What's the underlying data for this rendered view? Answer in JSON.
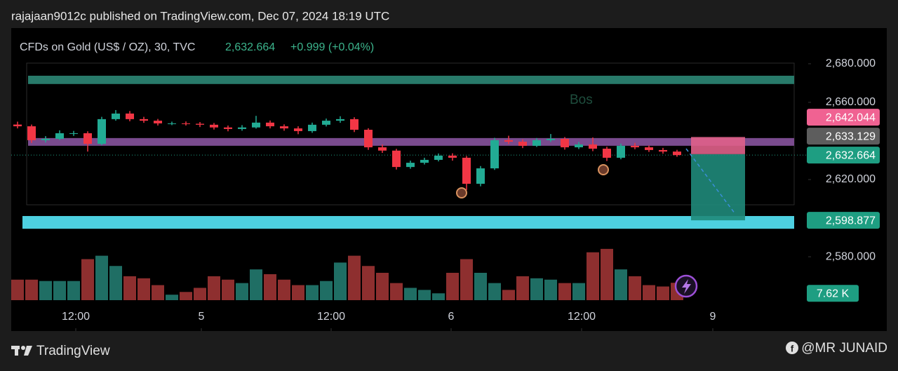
{
  "header": {
    "publisher": "rajajaan9012c published on TradingView.com, Dec 07, 2024 18:19 UTC"
  },
  "footer": {
    "brand": "TradingView",
    "credit": "@MR JUNAID"
  },
  "chart_data": {
    "type": "candlestick",
    "title": "CFDs on Gold (US$ / OZ), 30, TVC",
    "last_price": {
      "value": 2632.664,
      "label": "2,632.664"
    },
    "change": "+0.999 (+0.04%)",
    "annotation": "Bos",
    "up_color": "#22ab94",
    "down_color": "#f23645",
    "volume_up_color": "#1f6e64",
    "volume_down_color": "#8e2f2f",
    "x": [
      0,
      1,
      2,
      3,
      4,
      5,
      6,
      7,
      8,
      9,
      10,
      11,
      12,
      13,
      14,
      15,
      16,
      17,
      18,
      19,
      20,
      21,
      22,
      23,
      24,
      25,
      26,
      27,
      28,
      29,
      30,
      31,
      32,
      33,
      34,
      35,
      36,
      37,
      38,
      39,
      40,
      41,
      42,
      43,
      44,
      45,
      46,
      47
    ],
    "open": [
      2648.5,
      2647.6,
      2640.4,
      2641.1,
      2644.0,
      2644.0,
      2638.5,
      2651.3,
      2654.2,
      2651.3,
      2650.5,
      2649.1,
      2649.1,
      2648.9,
      2648.4,
      2647.0,
      2646.2,
      2647.0,
      2649.5,
      2647.6,
      2646.5,
      2645.1,
      2648.4,
      2650.5,
      2651.3,
      2645.8,
      2636.7,
      2635.0,
      2626.5,
      2628.7,
      2630.2,
      2632.4,
      2631.3,
      2617.8,
      2625.8,
      2640.4,
      2639.6,
      2637.5,
      2640.4,
      2641.1,
      2636.7,
      2638.2,
      2636.0,
      2631.3,
      2637.5,
      2636.7,
      2635.3,
      2634.5
    ],
    "high": [
      2650.0,
      2648.5,
      2642.5,
      2645.5,
      2645.2,
      2645.0,
      2652.5,
      2656.0,
      2655.5,
      2652.5,
      2651.4,
      2650.0,
      2650.1,
      2649.8,
      2649.3,
      2648.0,
      2648.2,
      2653.0,
      2650.6,
      2648.6,
      2647.6,
      2649.5,
      2651.6,
      2652.8,
      2652.3,
      2646.6,
      2638.2,
      2635.9,
      2629.8,
      2631.3,
      2633.5,
      2633.6,
      2632.2,
      2627.0,
      2641.6,
      2642.7,
      2640.8,
      2641.5,
      2643.6,
      2642.0,
      2639.5,
      2641.8,
      2637.0,
      2638.6,
      2639.0,
      2637.6,
      2636.4,
      2635.4
    ],
    "low": [
      2646.5,
      2639.0,
      2639.2,
      2640.5,
      2642.6,
      2634.5,
      2637.8,
      2650.5,
      2650.2,
      2649.4,
      2648.0,
      2648.2,
      2648.0,
      2647.2,
      2645.9,
      2645.0,
      2645.3,
      2646.4,
      2646.5,
      2645.3,
      2643.5,
      2644.2,
      2647.5,
      2649.4,
      2644.6,
      2635.4,
      2633.8,
      2625.2,
      2625.6,
      2627.8,
      2629.4,
      2629.8,
      2614.5,
      2616.5,
      2625.0,
      2638.4,
      2636.3,
      2636.9,
      2639.5,
      2635.5,
      2635.8,
      2634.7,
      2629.6,
      2630.5,
      2635.7,
      2634.3,
      2633.4,
      2631.8
    ],
    "close": [
      2647.6,
      2640.4,
      2641.1,
      2644.0,
      2644.0,
      2638.5,
      2651.3,
      2654.2,
      2651.3,
      2650.5,
      2649.1,
      2649.1,
      2648.9,
      2648.4,
      2647.0,
      2646.2,
      2647.0,
      2649.5,
      2647.6,
      2646.5,
      2645.1,
      2648.4,
      2650.5,
      2651.3,
      2645.8,
      2636.7,
      2635.0,
      2626.5,
      2628.7,
      2630.2,
      2632.4,
      2631.3,
      2617.8,
      2625.8,
      2640.4,
      2639.6,
      2637.5,
      2640.4,
      2641.1,
      2636.7,
      2638.2,
      2636.0,
      2631.3,
      2637.5,
      2636.7,
      2635.3,
      2634.5,
      2632.664
    ],
    "volume": [
      9000,
      9000,
      8400,
      8400,
      8400,
      18000,
      19500,
      15000,
      10500,
      9600,
      6600,
      2400,
      3600,
      5400,
      10500,
      9000,
      7500,
      13500,
      11400,
      9000,
      6600,
      6600,
      8400,
      16500,
      19500,
      15000,
      12000,
      7500,
      5400,
      4500,
      3000,
      12000,
      18000,
      12000,
      7500,
      4500,
      10500,
      9600,
      9000,
      7500,
      7500,
      21000,
      22500,
      13500,
      10500,
      6600,
      6000,
      7620
    ],
    "volume_last": {
      "value": 7620,
      "label": "7.62 K"
    },
    "volume_ylim": [
      0,
      40000
    ],
    "xlim": [
      -0.45,
      56.35
    ],
    "ylim": [
      2557.5,
      2698.5
    ],
    "yticks": [
      {
        "value": 2680,
        "label": "2,680.000"
      },
      {
        "value": 2660,
        "label": "2,660.000"
      },
      {
        "value": 2620,
        "label": "2,620.000"
      },
      {
        "value": 2580,
        "label": "2,580.000"
      }
    ],
    "xticks": [
      {
        "value": 4.15,
        "label": "12:00"
      },
      {
        "value": 13.1,
        "label": "5"
      },
      {
        "value": 22.35,
        "label": "12:00"
      },
      {
        "value": 30.9,
        "label": "6"
      },
      {
        "value": 40.2,
        "label": "12:00"
      },
      {
        "value": 49.55,
        "label": "9"
      }
    ],
    "zones": [
      {
        "from": 2669.5,
        "to": 2673.8,
        "color": "#287a6a"
      },
      {
        "from": 2637.5,
        "to": 2641.5,
        "color": "#7a4b8e"
      },
      {
        "from": 2594.5,
        "to": 2601.1,
        "color": "#4dd0e1"
      }
    ],
    "price_tags": [
      {
        "value": 2642.044,
        "label": "2,642.044",
        "color": "#f06292"
      },
      {
        "value": 2633.129,
        "label": "2,633.129",
        "color": "#5d5d5d"
      },
      {
        "value": 2632.664,
        "label": "2,632.664",
        "color": "#1e9e82"
      },
      {
        "value": 2598.877,
        "label": "2,598.877",
        "color": "#1e9e82"
      }
    ],
    "position": {
      "x_from": 48,
      "x_to": 51.85,
      "stop_color": "#e0608a",
      "target_color": "#1f8a7a"
    }
  }
}
